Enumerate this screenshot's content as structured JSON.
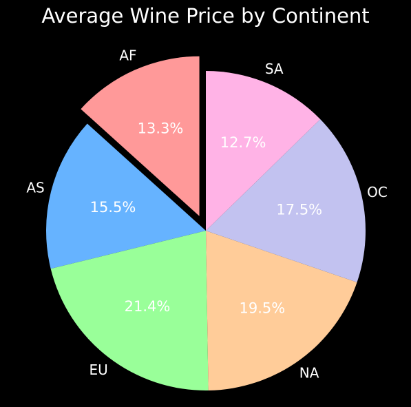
{
  "chart_data": {
    "type": "pie",
    "title": "Average Wine Price by Continent",
    "categories": [
      "AF",
      "AS",
      "EU",
      "NA",
      "OC",
      "SA"
    ],
    "values": [
      13.3,
      15.5,
      21.4,
      19.5,
      17.5,
      12.7
    ],
    "percent_labels": [
      "13.3%",
      "15.5%",
      "21.4%",
      "19.5%",
      "17.5%",
      "12.7%"
    ],
    "colors": [
      "#ff9999",
      "#66b3ff",
      "#99ff99",
      "#ffcc99",
      "#c2c2f0",
      "#ffb3e6"
    ],
    "explode": [
      0.1,
      0,
      0,
      0,
      0,
      0
    ],
    "start_angle": 90,
    "direction": "counterclockwise",
    "legend": "none"
  }
}
